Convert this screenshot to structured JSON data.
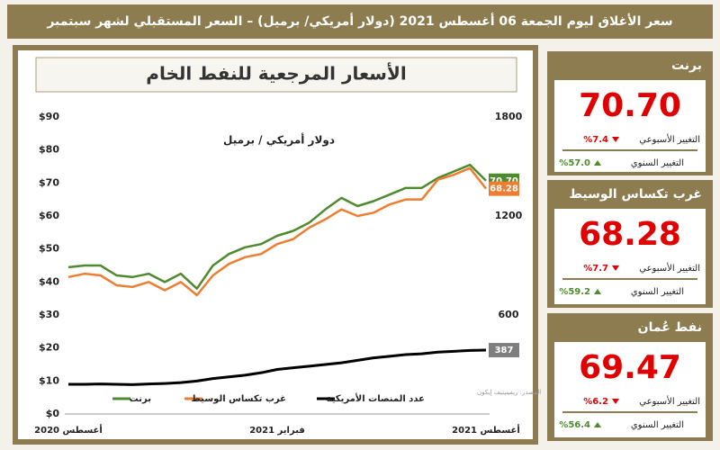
{
  "header": {
    "title": "سعر الأغلاق ليوم الجمعة 06 أغسطس 2021 (دولار أمريكي/ برميل)  – السعر المستقبلي لشهر سبتمبر"
  },
  "chart_data": {
    "type": "line",
    "title": "الأسعار المرجعية للنفط الخام",
    "subtitle": "دولار أمريكي / برميل",
    "source": "المصدر: ريفينيتيف إيكون",
    "categories": [
      "أغسطس 2020",
      null,
      null,
      null,
      null,
      null,
      null,
      null,
      null,
      null,
      null,
      null,
      null,
      "فبراير 2021",
      null,
      null,
      null,
      null,
      null,
      null,
      null,
      null,
      null,
      null,
      null,
      null,
      "أغسطس 2021"
    ],
    "series": [
      {
        "name": "برنت",
        "color": "#4e8a2e",
        "last_label": "70.70",
        "values": [
          44.5,
          45.0,
          45.0,
          42.0,
          41.5,
          42.5,
          40.0,
          42.5,
          38.0,
          45.0,
          48.5,
          50.5,
          51.5,
          54.0,
          55.5,
          58.0,
          62.0,
          65.5,
          63.0,
          64.5,
          66.5,
          68.5,
          68.5,
          71.5,
          73.5,
          75.5,
          70.7
        ]
      },
      {
        "name": "غرب تكساس الوسيط",
        "color": "#ed7d31",
        "values": [
          41.5,
          42.5,
          42.0,
          39.0,
          38.5,
          40.0,
          37.5,
          40.0,
          36.0,
          42.0,
          45.5,
          47.5,
          48.5,
          51.5,
          53.0,
          56.5,
          59.0,
          62.0,
          60.0,
          61.0,
          63.5,
          65.0,
          65.0,
          71.0,
          72.5,
          74.5,
          68.28
        ]
      },
      {
        "name": "عدد المنصات الأمريكية",
        "color": "#000000",
        "axis": "y2",
        "label_color": "#7f7f7f",
        "values": [
          180,
          180,
          182,
          180,
          178,
          182,
          185,
          190,
          200,
          215,
          225,
          235,
          250,
          270,
          280,
          290,
          300,
          310,
          325,
          340,
          350,
          360,
          365,
          375,
          380,
          385,
          387
        ]
      }
    ],
    "ylim": [
      0,
      90
    ],
    "yticks": [
      {
        "value": 0,
        "label": "$0"
      },
      {
        "value": 10,
        "label": "$10"
      },
      {
        "value": 20,
        "label": "$20"
      },
      {
        "value": 30,
        "label": "$30"
      },
      {
        "value": 40,
        "label": "$40"
      },
      {
        "value": 50,
        "label": "$50"
      },
      {
        "value": 60,
        "label": "$60"
      },
      {
        "value": 70,
        "label": "$70"
      },
      {
        "value": 80,
        "label": "$80"
      },
      {
        "value": 90,
        "label": "$90"
      }
    ],
    "y2lim": [
      0,
      1800
    ],
    "y2ticks": [
      600,
      1200,
      1800
    ],
    "grid": false,
    "legend": "bottom"
  },
  "cards": {
    "weekly_label": "التغيير الأسبوعي",
    "annual_label": "التغيير السنوي",
    "items": [
      {
        "name": "برنت",
        "price": "70.70",
        "weekly": "%7.4",
        "annual": "%57.0"
      },
      {
        "name": "غرب تكساس الوسيط",
        "price": "68.28",
        "weekly": "%7.7",
        "annual": "%59.2"
      },
      {
        "name": "نفط عُمان",
        "price": "69.47",
        "weekly": "%6.2",
        "annual": "%56.4"
      }
    ]
  }
}
